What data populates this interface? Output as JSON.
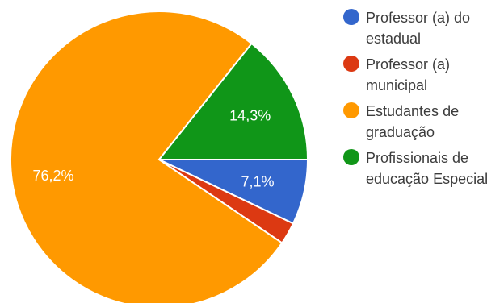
{
  "chart_data": {
    "type": "pie",
    "categories": [
      "Professor (a) do\nestadual",
      "Professor (a)\nmunicipal",
      "Estudantes de\ngraduação",
      "Profissionais de\neducação Especial"
    ],
    "values": [
      7.1,
      2.4,
      76.2,
      14.3
    ],
    "data_labels": [
      "7,1%",
      "",
      "76,2%",
      "14,3%"
    ],
    "colors": [
      "#3366cc",
      "#dc3912",
      "#ff9900",
      "#109618"
    ],
    "legend_position": "right",
    "label_color": "#ffffff"
  }
}
